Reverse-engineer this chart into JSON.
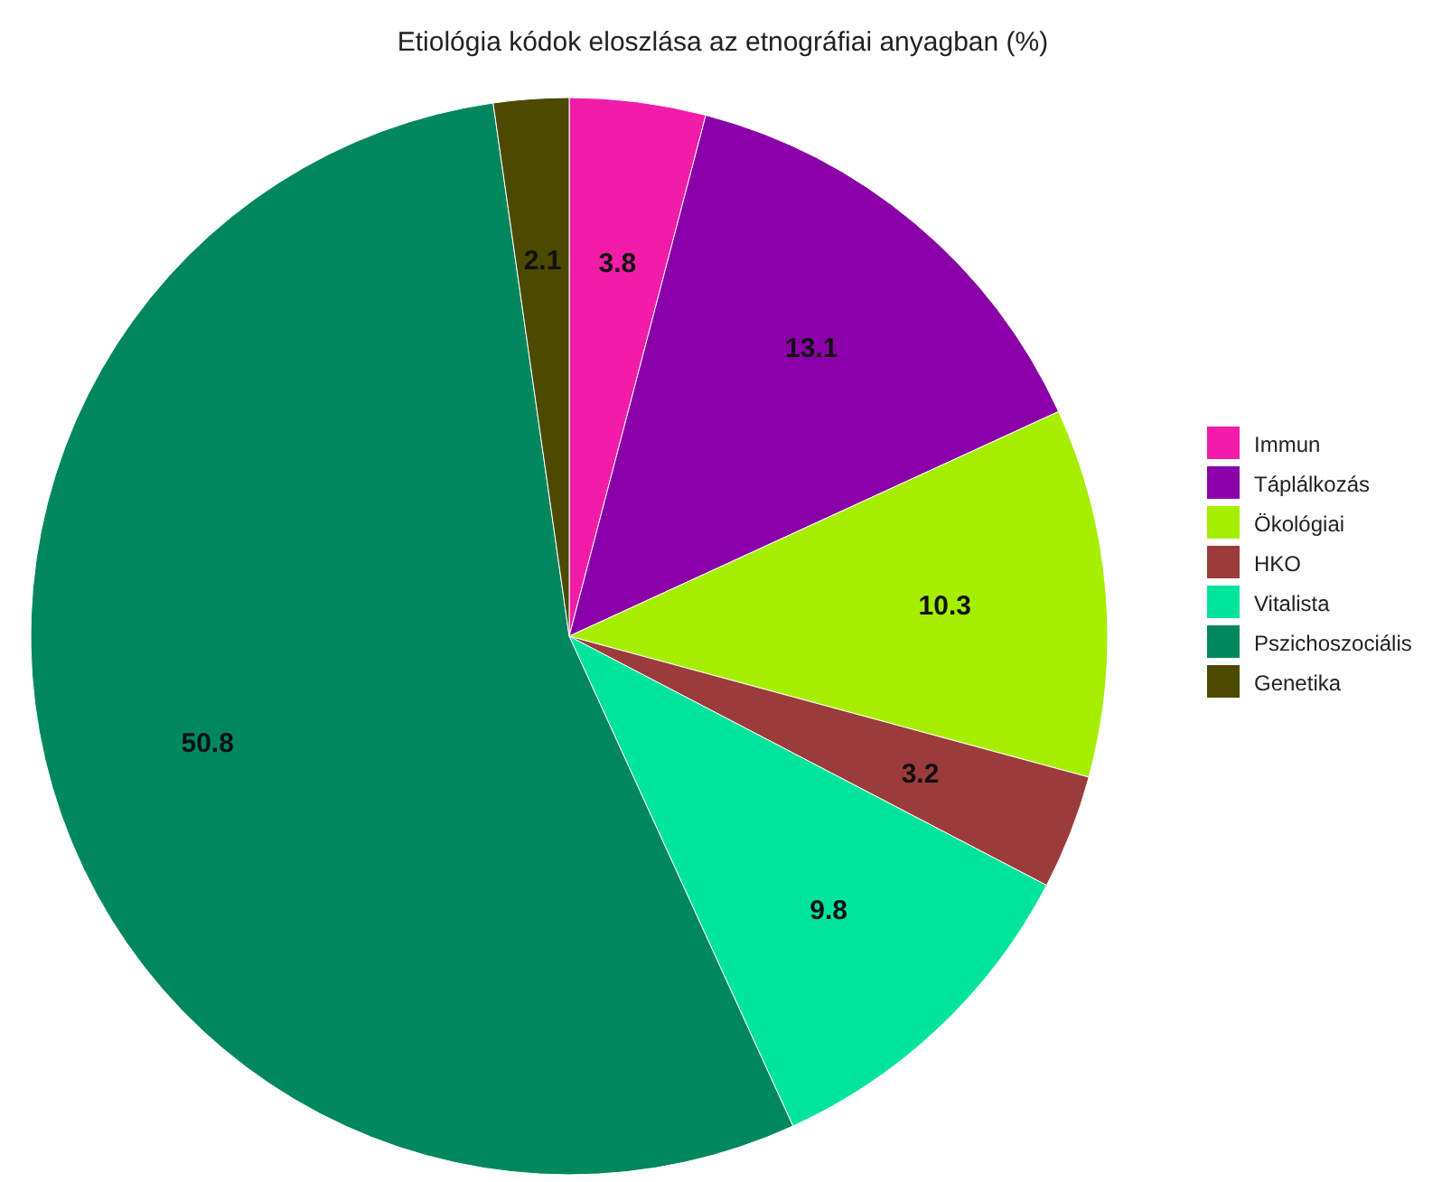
{
  "chart_data": {
    "type": "pie",
    "title": "Etiológia kódok eloszlása az etnográfiai anyagban (%)",
    "categories": [
      "Immun",
      "Táplálkozás",
      "Ökológiai",
      "HKO",
      "Vitalista",
      "Pszichoszociális",
      "Genetika"
    ],
    "values": [
      3.8,
      13.1,
      10.3,
      3.2,
      9.8,
      50.8,
      2.1
    ],
    "colors": [
      "#f21ca8",
      "#8a00a8",
      "#a6ee00",
      "#9c3b3b",
      "#00e59b",
      "#00875d",
      "#4b4a00"
    ],
    "data_labels": true,
    "legend": "right"
  }
}
